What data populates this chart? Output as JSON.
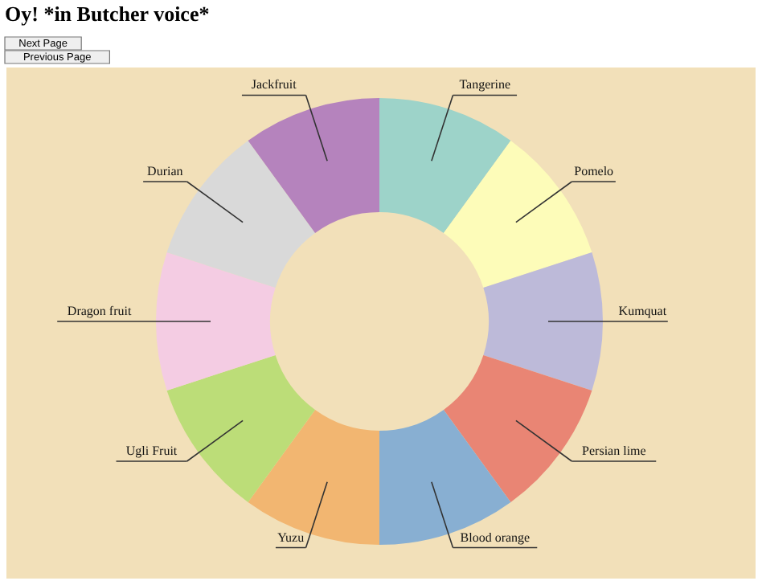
{
  "chart_data": {
    "type": "donut",
    "title": "Oy! *in Butcher voice*",
    "annotations": [
      "Next Page",
      "Previous Page"
    ],
    "categories": [
      "Tangerine",
      "Pomelo",
      "Kumquat",
      "Persian lime",
      "Blood orange",
      "Yuzu",
      "Ugli Fruit",
      "Dragon fruit",
      "Durian",
      "Jackfruit"
    ],
    "values": [
      10,
      10,
      10,
      10,
      10,
      10,
      10,
      10,
      10,
      10
    ],
    "colors": [
      "#9dd3c9",
      "#fdfcb9",
      "#bdbad9",
      "#e98574",
      "#88afd2",
      "#f2b671",
      "#bcdd78",
      "#f4cce3",
      "#d9d9d9",
      "#b583bd"
    ]
  }
}
